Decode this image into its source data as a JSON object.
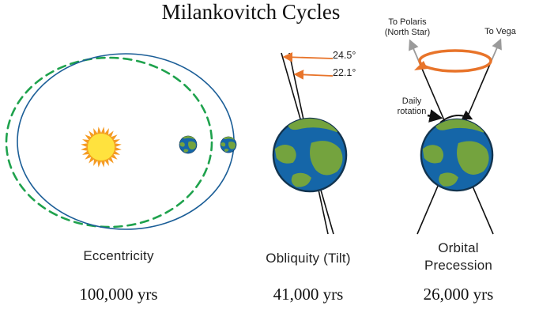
{
  "title": "Milankovitch Cycles",
  "panels": {
    "eccentricity": {
      "label": "Eccentricity",
      "period": "100,000 yrs"
    },
    "obliquity": {
      "label": "Obliquity (Tilt)",
      "period": "41,000 yrs",
      "angle_max": "24.5°",
      "angle_min": "22.1°"
    },
    "precession": {
      "label": "Orbital\nPrecession",
      "period": "26,000 yrs",
      "to_polaris": "To Polaris\n(North Star)",
      "to_vega": "To Vega",
      "daily_rotation": "Daily\nrotation"
    }
  },
  "colors": {
    "orbit_solid_blue": "#1B5E97",
    "orbit_dashed_green": "#1FA24D",
    "sun_core": "#FFE23E",
    "sun_rays": "#F59B23",
    "earth_ocean": "#1566A8",
    "earth_land": "#74A33E",
    "accent_orange": "#E8742A",
    "arrow_gray": "#9A9A9A",
    "axis_black": "#111111"
  }
}
